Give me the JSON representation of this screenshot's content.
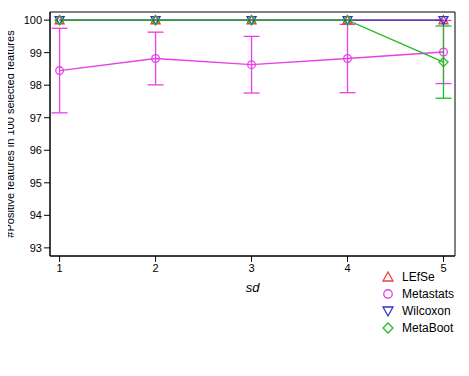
{
  "chart_data": {
    "type": "line",
    "x": [
      1,
      2,
      3,
      4,
      5
    ],
    "xlabel": "sd",
    "ylabel": "#Positive features in 100 selected features",
    "xlim": [
      0.9,
      5.12
    ],
    "xticks": [
      1,
      2,
      3,
      4,
      5
    ],
    "ylim": [
      92.75,
      100.25
    ],
    "yticks": [
      93,
      94,
      95,
      96,
      97,
      98,
      99,
      100
    ],
    "legend": "bottom-right",
    "series": [
      {
        "name": "LEfSe",
        "color": "#e8413c",
        "marker": "triangle",
        "values": [
          100,
          100,
          100,
          100,
          100
        ]
      },
      {
        "name": "Metastats",
        "color": "#e83fe8",
        "marker": "circle",
        "values": [
          98.45,
          98.82,
          98.63,
          98.82,
          99.02
        ],
        "errors": [
          1.3,
          0.81,
          0.87,
          1.05,
          0.97
        ]
      },
      {
        "name": "Wilcoxon",
        "color": "#3333cc",
        "marker": "triangle_down",
        "values": [
          100,
          100,
          100,
          100,
          100
        ]
      },
      {
        "name": "MetaBoot",
        "color": "#22bb22",
        "marker": "diamond",
        "values": [
          100,
          100,
          100,
          100,
          98.71
        ],
        "errors": [
          null,
          null,
          null,
          null,
          1.11
        ]
      }
    ]
  }
}
